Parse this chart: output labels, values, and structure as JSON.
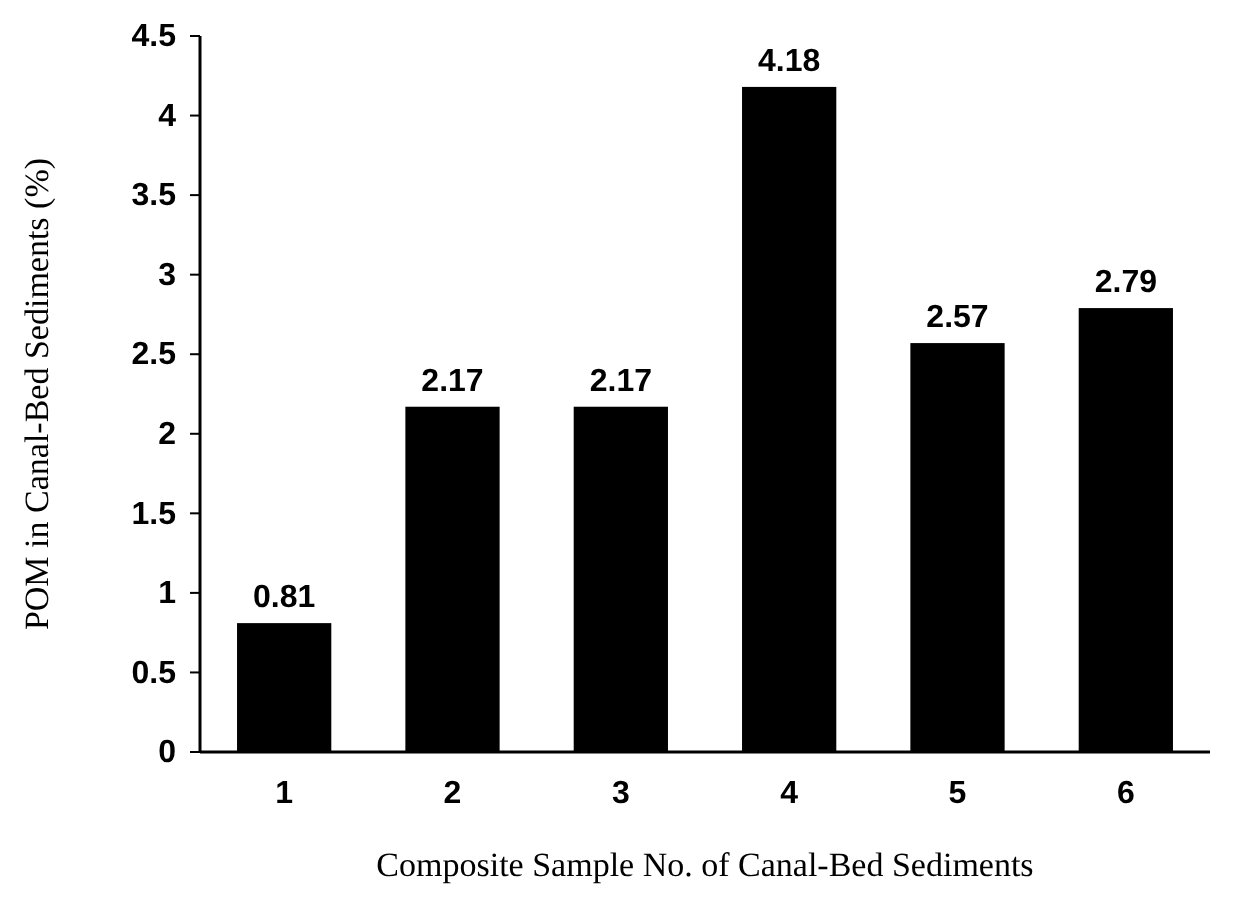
{
  "chart_data": {
    "type": "bar",
    "xlabel": "Composite Sample No. of Canal-Bed Sediments",
    "ylabel": "POM in Canal-Bed Sediments (%)",
    "categories": [
      "1",
      "2",
      "3",
      "4",
      "5",
      "6"
    ],
    "values": [
      0.81,
      2.17,
      2.17,
      4.18,
      2.57,
      2.79
    ],
    "color": "#000000",
    "data_labels": true,
    "ylim": [
      0,
      4.5
    ],
    "yticks": [
      0,
      0.5,
      1,
      1.5,
      2,
      2.5,
      3,
      3.5,
      4,
      4.5
    ],
    "grid": false
  }
}
